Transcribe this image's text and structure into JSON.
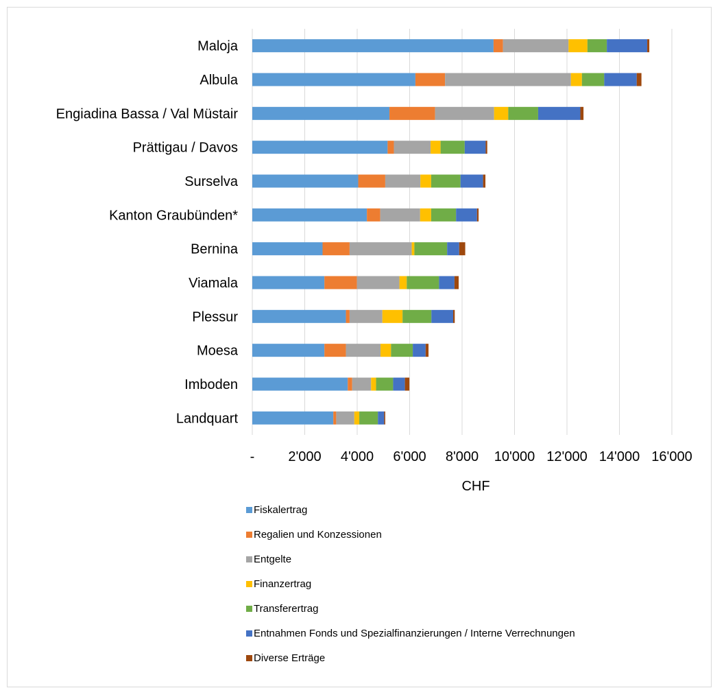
{
  "chart_data": {
    "type": "bar",
    "orientation": "horizontal",
    "stacked": true,
    "title": "",
    "xlabel": "CHF",
    "ylabel": "",
    "xlim": [
      0,
      16000
    ],
    "x_tick_values": [
      0,
      2000,
      4000,
      6000,
      8000,
      10000,
      12000,
      14000,
      16000
    ],
    "x_tick_labels": [
      "-",
      "2'000",
      "4'000",
      "6'000",
      "8'000",
      "10'000",
      "12'000",
      "14'000",
      "16'000"
    ],
    "grid": true,
    "legend_position": "bottom",
    "categories": [
      "Maloja",
      "Albula",
      "Engiadina Bassa / Val Müstair",
      "Prättigau / Davos",
      "Surselva",
      "Kanton Graubünden*",
      "Bernina",
      "Viamala",
      "Plessur",
      "Moesa",
      "Imboden",
      "Landquart"
    ],
    "series": [
      {
        "name": "Fiskalertrag",
        "color": "#5b9bd5",
        "values": [
          9200,
          6220,
          5230,
          5160,
          4040,
          4370,
          2680,
          2750,
          3570,
          2750,
          3640,
          3090
        ]
      },
      {
        "name": "Regalien und Konzessionen",
        "color": "#ed7d31",
        "values": [
          360,
          1130,
          1740,
          240,
          1030,
          510,
          1030,
          1240,
          140,
          820,
          170,
          110
        ]
      },
      {
        "name": "Entgelte",
        "color": "#a5a5a5",
        "values": [
          2500,
          4800,
          2250,
          1400,
          1340,
          1520,
          2370,
          1620,
          1250,
          1320,
          720,
          690
        ]
      },
      {
        "name": "Finanzertrag",
        "color": "#ffc000",
        "values": [
          720,
          420,
          540,
          380,
          410,
          420,
          100,
          280,
          770,
          400,
          190,
          190
        ]
      },
      {
        "name": "Transferertrag",
        "color": "#70ad47",
        "values": [
          740,
          850,
          1140,
          920,
          1120,
          950,
          1250,
          1230,
          1100,
          830,
          650,
          710
        ]
      },
      {
        "name": "Entnahmen Fonds und Spezialfinanzierungen / Interne Verrechnungen",
        "color": "#4472c4",
        "values": [
          1540,
          1240,
          1610,
          800,
          860,
          800,
          460,
          590,
          830,
          490,
          450,
          240
        ]
      },
      {
        "name": "Diverse Erträge",
        "color": "#9e480e",
        "values": [
          80,
          180,
          120,
          60,
          90,
          60,
          230,
          160,
          60,
          110,
          170,
          40
        ]
      }
    ]
  }
}
